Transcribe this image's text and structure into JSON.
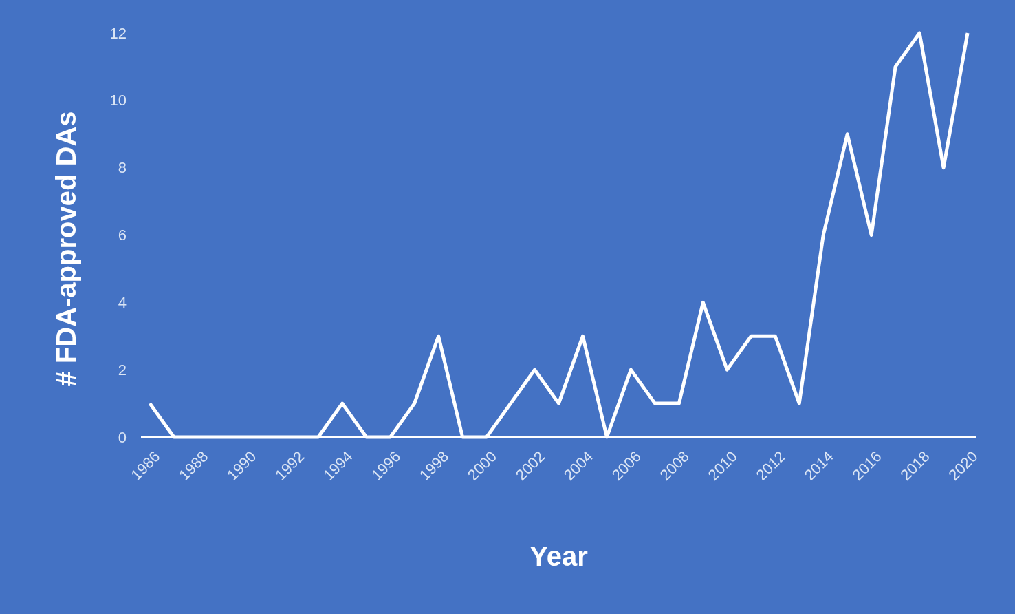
{
  "chart_data": {
    "type": "line",
    "xlabel": "Year",
    "ylabel": "# FDA-approved DAs",
    "categories": [
      "1986",
      null,
      "1988",
      null,
      "1990",
      null,
      "1992",
      null,
      "1994",
      null,
      "1996",
      null,
      "1998",
      null,
      "2000",
      null,
      "2002",
      null,
      "2004",
      null,
      "2006",
      null,
      "2008",
      null,
      "2010",
      null,
      "2012",
      null,
      "2014",
      null,
      "2016",
      null,
      "2018",
      null,
      "2020"
    ],
    "series": [
      {
        "color": "#ffffff",
        "values": [
          1,
          0,
          0,
          0,
          0,
          0,
          0,
          0,
          1,
          0,
          0,
          1,
          3,
          0,
          0,
          1,
          2,
          1,
          3,
          0,
          2,
          1,
          1,
          4,
          2,
          3,
          3,
          1,
          6,
          9,
          6,
          11,
          12,
          8,
          12
        ]
      }
    ],
    "ylim": [
      0,
      12
    ],
    "yticks": [
      0,
      2,
      4,
      6,
      8,
      10,
      12
    ],
    "grid": false,
    "marker": "none",
    "line_style": "solid"
  }
}
